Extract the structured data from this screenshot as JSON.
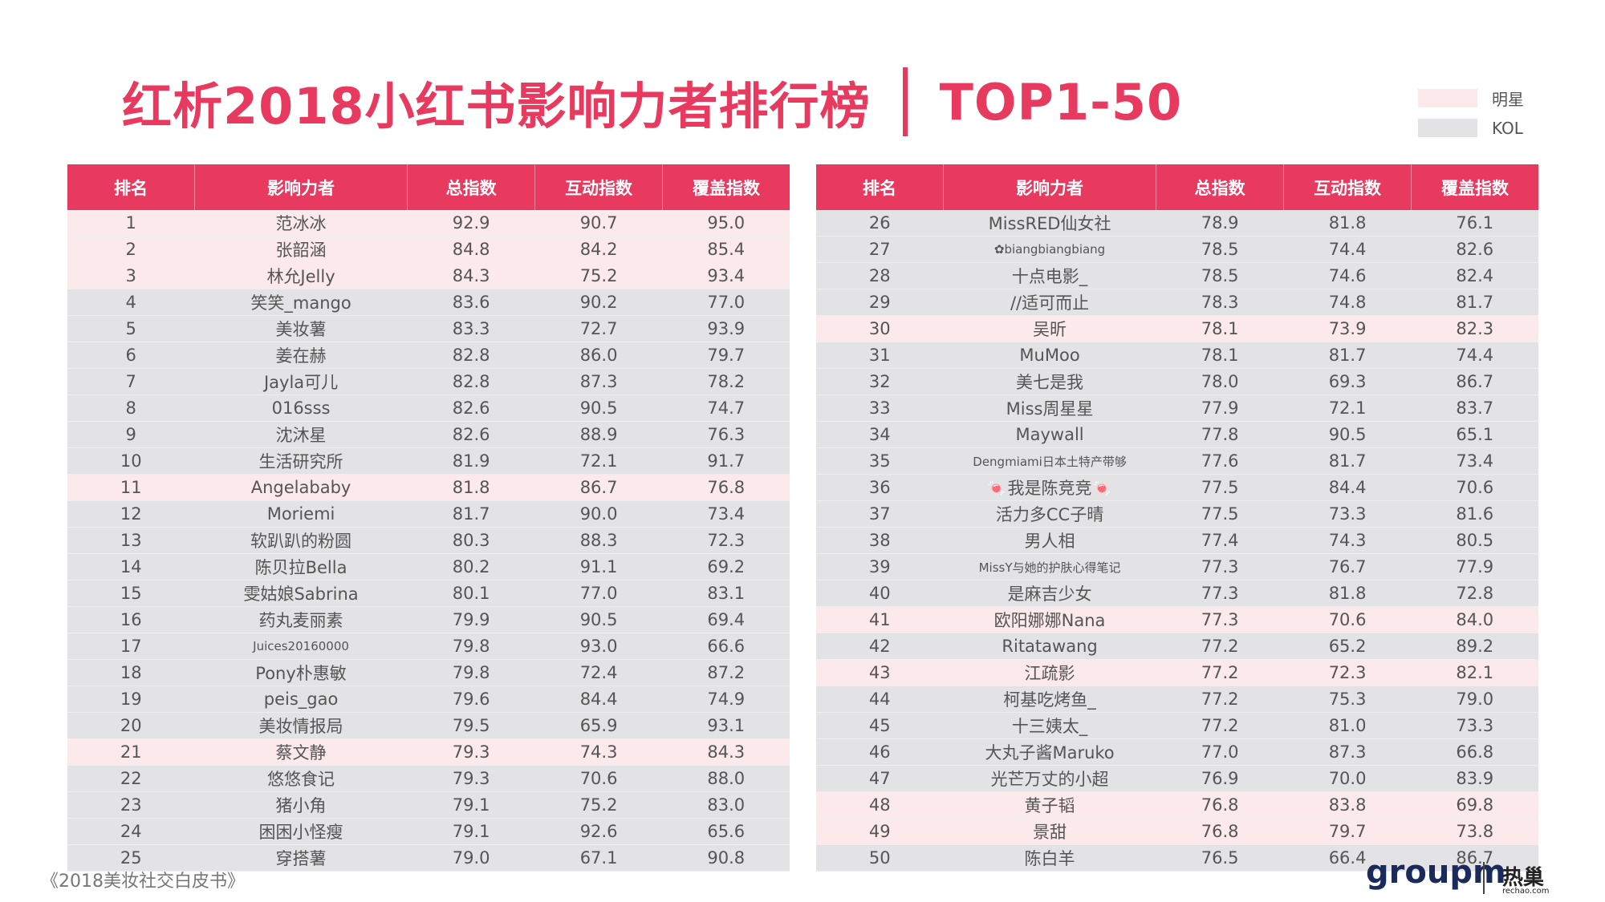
{
  "header": {
    "title": "红析2018小红书影响力者排行榜",
    "subtitle": "TOP1-50"
  },
  "legend": [
    {
      "label": "明星",
      "color": "#fbe9ec"
    },
    {
      "label": "KOL",
      "color": "#e3e3e5"
    }
  ],
  "header_color": "#e8395f",
  "tables": [
    {
      "columns": [
        "排名",
        "影响力者",
        "总指数",
        "互动指数",
        "覆盖指数"
      ],
      "rows": [
        {
          "cells": [
            "1",
            "范冰冰",
            "92.9",
            "90.7",
            "95.0"
          ],
          "group": 0
        },
        {
          "cells": [
            "2",
            "张韶涵",
            "84.8",
            "84.2",
            "85.4"
          ],
          "group": 0
        },
        {
          "cells": [
            "3",
            "林允Jelly",
            "84.3",
            "75.2",
            "93.4"
          ],
          "group": 0
        },
        {
          "cells": [
            "4",
            "笑笑_mango",
            "83.6",
            "90.2",
            "77.0"
          ],
          "group": 1
        },
        {
          "cells": [
            "5",
            "美妆薯",
            "83.3",
            "72.7",
            "93.9"
          ],
          "group": 1
        },
        {
          "cells": [
            "6",
            "姜在赫",
            "82.8",
            "86.0",
            "79.7"
          ],
          "group": 1
        },
        {
          "cells": [
            "7",
            "Jayla可儿",
            "82.8",
            "87.3",
            "78.2"
          ],
          "group": 1
        },
        {
          "cells": [
            "8",
            "016sss",
            "82.6",
            "90.5",
            "74.7"
          ],
          "group": 1
        },
        {
          "cells": [
            "9",
            "沈沐星",
            "82.6",
            "88.9",
            "76.3"
          ],
          "group": 1
        },
        {
          "cells": [
            "10",
            "生活研究所",
            "81.9",
            "72.1",
            "91.7"
          ],
          "group": 1
        },
        {
          "cells": [
            "11",
            "Angelababy",
            "81.8",
            "86.7",
            "76.8"
          ],
          "group": 0
        },
        {
          "cells": [
            "12",
            "Moriemi",
            "81.7",
            "90.0",
            "73.4"
          ],
          "group": 1
        },
        {
          "cells": [
            "13",
            "软趴趴的粉圆",
            "80.3",
            "88.3",
            "72.3"
          ],
          "group": 1
        },
        {
          "cells": [
            "14",
            "陈贝拉Bella",
            "80.2",
            "91.1",
            "69.2"
          ],
          "group": 1
        },
        {
          "cells": [
            "15",
            "雯姑娘Sabrina",
            "80.1",
            "77.0",
            "83.1"
          ],
          "group": 1
        },
        {
          "cells": [
            "16",
            "药丸麦丽素",
            "79.9",
            "90.5",
            "69.4"
          ],
          "group": 1
        },
        {
          "cells": [
            "17",
            "Juices20160000",
            "79.8",
            "93.0",
            "66.6"
          ],
          "group": 1
        },
        {
          "cells": [
            "18",
            "Pony朴惠敏",
            "79.8",
            "72.4",
            "87.2"
          ],
          "group": 1
        },
        {
          "cells": [
            "19",
            "peis_gao",
            "79.6",
            "84.4",
            "74.9"
          ],
          "group": 1
        },
        {
          "cells": [
            "20",
            "美妆情报局",
            "79.5",
            "65.9",
            "93.1"
          ],
          "group": 1
        },
        {
          "cells": [
            "21",
            "蔡文静",
            "79.3",
            "74.3",
            "84.3"
          ],
          "group": 0
        },
        {
          "cells": [
            "22",
            "悠悠食记",
            "79.3",
            "70.6",
            "88.0"
          ],
          "group": 1
        },
        {
          "cells": [
            "23",
            "猪小角",
            "79.1",
            "75.2",
            "83.0"
          ],
          "group": 1
        },
        {
          "cells": [
            "24",
            "困困小怪瘦",
            "79.1",
            "92.6",
            "65.6"
          ],
          "group": 1
        },
        {
          "cells": [
            "25",
            "穿搭薯",
            "79.0",
            "67.1",
            "90.8"
          ],
          "group": 1
        }
      ]
    },
    {
      "columns": [
        "排名",
        "影响力者",
        "总指数",
        "互动指数",
        "覆盖指数"
      ],
      "rows": [
        {
          "cells": [
            "26",
            "MissRED仙女社",
            "78.9",
            "81.8",
            "76.1"
          ],
          "group": 1
        },
        {
          "cells": [
            "27",
            "✿biangbiangbiang",
            "78.5",
            "74.4",
            "82.6"
          ],
          "group": 1
        },
        {
          "cells": [
            "28",
            "十点电影_",
            "78.5",
            "74.6",
            "82.4"
          ],
          "group": 1
        },
        {
          "cells": [
            "29",
            "//适可而止",
            "78.3",
            "74.8",
            "81.7"
          ],
          "group": 1
        },
        {
          "cells": [
            "30",
            "吴昕",
            "78.1",
            "73.9",
            "82.3"
          ],
          "group": 0
        },
        {
          "cells": [
            "31",
            "MuMoo",
            "78.1",
            "81.7",
            "74.4"
          ],
          "group": 1
        },
        {
          "cells": [
            "32",
            "美七是我",
            "78.0",
            "69.3",
            "86.7"
          ],
          "group": 1
        },
        {
          "cells": [
            "33",
            "Miss周星星",
            "77.9",
            "72.1",
            "83.7"
          ],
          "group": 1
        },
        {
          "cells": [
            "34",
            "Maywall",
            "77.8",
            "90.5",
            "65.1"
          ],
          "group": 1
        },
        {
          "cells": [
            "35",
            "Dengmiami日本土特产带够",
            "77.6",
            "81.7",
            "73.4"
          ],
          "group": 1
        },
        {
          "cells": [
            "36",
            "🍬我是陈竞竞🍬",
            "77.5",
            "84.4",
            "70.6"
          ],
          "group": 1
        },
        {
          "cells": [
            "37",
            "活力多CC子晴",
            "77.5",
            "73.3",
            "81.6"
          ],
          "group": 1
        },
        {
          "cells": [
            "38",
            "男人相",
            "77.4",
            "74.3",
            "80.5"
          ],
          "group": 1
        },
        {
          "cells": [
            "39",
            "MissY与她的护肤心得笔记",
            "77.3",
            "76.7",
            "77.9"
          ],
          "group": 1
        },
        {
          "cells": [
            "40",
            "是麻吉少女",
            "77.3",
            "81.8",
            "72.8"
          ],
          "group": 1
        },
        {
          "cells": [
            "41",
            "欧阳娜娜Nana",
            "77.3",
            "70.6",
            "84.0"
          ],
          "group": 0
        },
        {
          "cells": [
            "42",
            "Ritatawang",
            "77.2",
            "65.2",
            "89.2"
          ],
          "group": 1
        },
        {
          "cells": [
            "43",
            "江疏影",
            "77.2",
            "72.3",
            "82.1"
          ],
          "group": 0
        },
        {
          "cells": [
            "44",
            "柯基吃烤鱼_",
            "77.2",
            "75.3",
            "79.0"
          ],
          "group": 1
        },
        {
          "cells": [
            "45",
            "十三姨太_",
            "77.2",
            "81.0",
            "73.3"
          ],
          "group": 1
        },
        {
          "cells": [
            "46",
            "大丸子酱Maruko",
            "77.0",
            "87.3",
            "66.8"
          ],
          "group": 1
        },
        {
          "cells": [
            "47",
            "光芒万丈的小超",
            "76.9",
            "70.0",
            "83.9"
          ],
          "group": 1
        },
        {
          "cells": [
            "48",
            "黄子韬",
            "76.8",
            "83.8",
            "69.8"
          ],
          "group": 0
        },
        {
          "cells": [
            "49",
            "景甜",
            "76.8",
            "79.7",
            "73.8"
          ],
          "group": 0
        },
        {
          "cells": [
            "50",
            "陈白羊",
            "76.5",
            "66.4",
            "86.7"
          ],
          "group": 1
        }
      ]
    }
  ],
  "footer": {
    "source": "《2018美妆社交白皮书》",
    "logo": "groupm",
    "logo2": "热巢",
    "logo2_url": "rechao.com"
  }
}
